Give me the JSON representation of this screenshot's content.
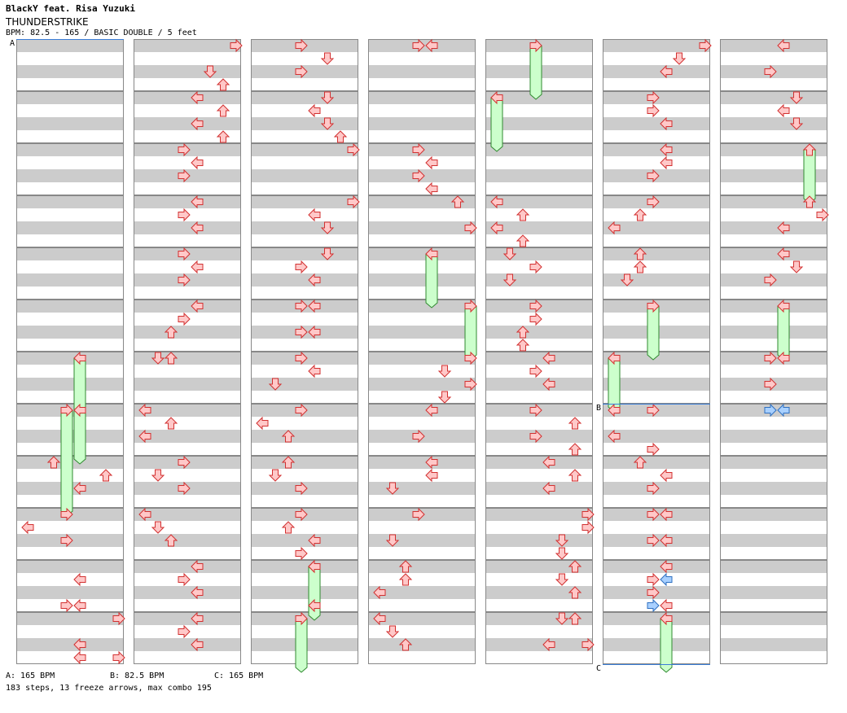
{
  "header": {
    "artist": "BlackY feat. Risa Yuzuki",
    "title": "THUNDERSTRIKE",
    "info": "BPM: 82.5 - 165 / BASIC DOUBLE / 5 feet"
  },
  "bpm_markers": [
    {
      "label": "A",
      "column": 0,
      "measure": 0,
      "row": 0
    },
    {
      "label": "B",
      "column": 5,
      "measure": 7,
      "row": 0
    },
    {
      "label": "C",
      "column": 5,
      "measure": 11,
      "row": 4
    }
  ],
  "bpm_legend": [
    "A: 165 BPM",
    "B: 82.5 BPM",
    "C: 165 BPM"
  ],
  "stats": "183 steps, 13 freeze arrows, max combo 195",
  "colors": {
    "stripe": "#cccccc",
    "border": "#888888",
    "arrow_fill": "#ffc8c8",
    "arrow_stroke": "#d23030",
    "freeze_fill": "#ccffcc",
    "freeze_stroke": "#2f8a2f",
    "shock_fill": "#a8d0ff",
    "shock_stroke": "#2e6fc0",
    "bpm_line": "#3a7dd8"
  },
  "chart": {
    "columns": [
      [
        [],
        [],
        [],
        [],
        [],
        [],
        [
          [
            4,
            0,
            "F",
            8
          ]
        ],
        [
          [
            3,
            0,
            "F",
            8
          ],
          [
            4,
            0,
            "N"
          ]
        ],
        [
          [
            3,
            4,
            "N"
          ],
          [
            2,
            0,
            "N"
          ],
          [
            4,
            2,
            "N"
          ],
          [
            6,
            1,
            "N"
          ],
          [
            3,
            6,
            "N"
          ]
        ],
        [
          [
            0,
            1,
            "N"
          ]
        ],
        [
          [
            4,
            3,
            "N"
          ],
          [
            4,
            1,
            "N"
          ],
          [
            3,
            3,
            "N"
          ],
          [
            4,
            6,
            "N"
          ]
        ],
        [
          [
            7,
            0,
            "N"
          ],
          [
            4,
            3,
            "N"
          ],
          [
            7,
            3,
            "N"
          ]
        ]
      ],
      [
        [
          [
            7,
            0,
            "N"
          ],
          [
            5,
            2,
            "N"
          ],
          [
            6,
            3,
            "N"
          ]
        ],
        [
          [
            4,
            0,
            "N"
          ],
          [
            6,
            1,
            "N"
          ],
          [
            4,
            2,
            "N"
          ],
          [
            6,
            3,
            "N"
          ]
        ],
        [
          [
            3,
            0,
            "N"
          ],
          [
            4,
            1,
            "N"
          ],
          [
            3,
            2,
            "N"
          ]
        ],
        [
          [
            4,
            0,
            "N"
          ],
          [
            3,
            1,
            "N"
          ],
          [
            4,
            2,
            "N"
          ]
        ],
        [
          [
            3,
            0,
            "N"
          ],
          [
            4,
            1,
            "N"
          ],
          [
            3,
            2,
            "N"
          ]
        ],
        [
          [
            4,
            0,
            "N"
          ],
          [
            3,
            1,
            "N"
          ],
          [
            2,
            2,
            "N"
          ]
        ],
        [
          [
            1,
            0,
            "N"
          ],
          [
            2,
            0,
            "N"
          ]
        ],
        [
          [
            0,
            0,
            "N"
          ],
          [
            2,
            1,
            "N"
          ],
          [
            0,
            2,
            "N"
          ]
        ],
        [
          [
            3,
            0,
            "N"
          ],
          [
            1,
            1,
            "N"
          ],
          [
            3,
            2,
            "N"
          ]
        ],
        [
          [
            0,
            0,
            "N"
          ],
          [
            1,
            1,
            "N"
          ],
          [
            2,
            2,
            "N"
          ]
        ],
        [
          [
            4,
            0,
            "N"
          ],
          [
            3,
            1,
            "N"
          ],
          [
            4,
            2,
            "N"
          ]
        ],
        [
          [
            4,
            0,
            "N"
          ],
          [
            3,
            1,
            "N"
          ],
          [
            4,
            2,
            "N"
          ]
        ]
      ],
      [
        [
          [
            3,
            0,
            "N"
          ],
          [
            5,
            1,
            "N"
          ],
          [
            3,
            2,
            "N"
          ]
        ],
        [
          [
            5,
            0,
            "N"
          ],
          [
            4,
            1,
            "N"
          ],
          [
            5,
            2,
            "N"
          ],
          [
            6,
            3,
            "N"
          ]
        ],
        [
          [
            7,
            0,
            "N"
          ]
        ],
        [
          [
            7,
            0,
            "N"
          ],
          [
            4,
            1,
            "N"
          ],
          [
            5,
            2,
            "N"
          ]
        ],
        [
          [
            5,
            0,
            "N"
          ],
          [
            3,
            1,
            "N"
          ],
          [
            4,
            2,
            "N"
          ]
        ],
        [
          [
            3,
            0,
            "N"
          ],
          [
            4,
            0,
            "N"
          ],
          [
            3,
            2,
            "N"
          ],
          [
            4,
            2,
            "N"
          ]
        ],
        [
          [
            3,
            0,
            "N"
          ],
          [
            4,
            1,
            "N"
          ],
          [
            1,
            2,
            "N"
          ]
        ],
        [
          [
            3,
            0,
            "N"
          ],
          [
            0,
            1,
            "N"
          ],
          [
            2,
            2,
            "N"
          ]
        ],
        [
          [
            2,
            0,
            "N"
          ],
          [
            1,
            1,
            "N"
          ],
          [
            3,
            2,
            "N"
          ]
        ],
        [
          [
            3,
            0,
            "N"
          ],
          [
            2,
            1,
            "N"
          ],
          [
            4,
            2,
            "N"
          ],
          [
            3,
            3,
            "N"
          ]
        ],
        [
          [
            4,
            0,
            "F",
            4
          ],
          [
            4,
            0,
            "N"
          ],
          [
            4,
            3,
            "N"
          ]
        ],
        [
          [
            3,
            0,
            "F",
            4
          ]
        ]
      ],
      [
        [
          [
            3,
            0,
            "N"
          ],
          [
            4,
            0,
            "N"
          ]
        ],
        [],
        [
          [
            3,
            0,
            "N"
          ],
          [
            4,
            1,
            "N"
          ],
          [
            3,
            2,
            "N"
          ],
          [
            4,
            3,
            "N"
          ]
        ],
        [
          [
            6,
            0,
            "N"
          ],
          [
            7,
            2,
            "N"
          ]
        ],
        [
          [
            4,
            0,
            "F",
            4
          ]
        ],
        [
          [
            7,
            0,
            "F",
            4
          ]
        ],
        [
          [
            7,
            0,
            "N"
          ],
          [
            5,
            1,
            "N"
          ],
          [
            7,
            2,
            "N"
          ],
          [
            5,
            3,
            "N"
          ]
        ],
        [
          [
            4,
            0,
            "N"
          ],
          [
            3,
            2,
            "N"
          ]
        ],
        [
          [
            4,
            0,
            "N"
          ],
          [
            4,
            1,
            "N"
          ],
          [
            1,
            2,
            "N"
          ]
        ],
        [
          [
            3,
            0,
            "N"
          ],
          [
            1,
            2,
            "N"
          ]
        ],
        [
          [
            2,
            0,
            "N"
          ],
          [
            2,
            1,
            "N"
          ],
          [
            0,
            2,
            "N"
          ]
        ],
        [
          [
            0,
            0,
            "N"
          ],
          [
            1,
            1,
            "N"
          ],
          [
            2,
            2,
            "N"
          ]
        ]
      ],
      [
        [
          [
            3,
            0,
            "F",
            4
          ]
        ],
        [
          [
            0,
            0,
            "F",
            4
          ]
        ],
        [],
        [
          [
            0,
            0,
            "N"
          ],
          [
            2,
            1,
            "N"
          ],
          [
            0,
            2,
            "N"
          ],
          [
            2,
            3,
            "N"
          ]
        ],
        [
          [
            1,
            0,
            "N"
          ],
          [
            3,
            1,
            "N"
          ],
          [
            1,
            2,
            "N"
          ]
        ],
        [
          [
            3,
            0,
            "N"
          ],
          [
            3,
            1,
            "N"
          ],
          [
            2,
            2,
            "N"
          ],
          [
            2,
            3,
            "N"
          ]
        ],
        [
          [
            4,
            0,
            "N"
          ],
          [
            3,
            1,
            "N"
          ],
          [
            4,
            2,
            "N"
          ]
        ],
        [
          [
            3,
            0,
            "N"
          ],
          [
            6,
            1,
            "N"
          ],
          [
            3,
            2,
            "N"
          ],
          [
            6,
            3,
            "N"
          ]
        ],
        [
          [
            4,
            0,
            "N"
          ],
          [
            6,
            1,
            "N"
          ],
          [
            4,
            2,
            "N"
          ]
        ],
        [
          [
            7,
            0,
            "N"
          ],
          [
            7,
            1,
            "N"
          ],
          [
            5,
            2,
            "N"
          ],
          [
            5,
            3,
            "N"
          ]
        ],
        [
          [
            6,
            0,
            "N"
          ],
          [
            5,
            1,
            "N"
          ],
          [
            6,
            2,
            "N"
          ]
        ],
        [
          [
            5,
            0,
            "N"
          ],
          [
            6,
            0,
            "N"
          ],
          [
            4,
            2,
            "N"
          ],
          [
            7,
            2,
            "N"
          ]
        ]
      ],
      [
        [
          [
            7,
            0,
            "N"
          ],
          [
            5,
            1,
            "N"
          ],
          [
            4,
            2,
            "N"
          ]
        ],
        [
          [
            3,
            0,
            "N"
          ],
          [
            3,
            1,
            "N"
          ],
          [
            4,
            2,
            "N"
          ]
        ],
        [
          [
            4,
            0,
            "N"
          ],
          [
            4,
            1,
            "N"
          ],
          [
            3,
            2,
            "N"
          ]
        ],
        [
          [
            3,
            0,
            "N"
          ],
          [
            2,
            1,
            "N"
          ],
          [
            0,
            2,
            "N"
          ]
        ],
        [
          [
            2,
            0,
            "N"
          ],
          [
            2,
            1,
            "N"
          ],
          [
            1,
            2,
            "N"
          ]
        ],
        [
          [
            3,
            0,
            "F",
            4
          ]
        ],
        [
          [
            0,
            0,
            "F",
            4
          ]
        ],
        [
          [
            0,
            0,
            "N"
          ],
          [
            3,
            0,
            "N"
          ],
          [
            0,
            2,
            "N"
          ],
          [
            3,
            3,
            "N"
          ]
        ],
        [
          [
            2,
            0,
            "N"
          ],
          [
            4,
            1,
            "N"
          ],
          [
            3,
            2,
            "N"
          ]
        ],
        [
          [
            3,
            0,
            "N"
          ],
          [
            4,
            0,
            "N"
          ],
          [
            3,
            2,
            "N"
          ],
          [
            4,
            2,
            "N"
          ]
        ],
        [
          [
            4,
            0,
            "N"
          ],
          [
            4,
            1,
            "S"
          ],
          [
            3,
            1,
            "N"
          ],
          [
            3,
            2,
            "N"
          ],
          [
            3,
            3,
            "S"
          ],
          [
            4,
            3,
            "N"
          ]
        ],
        [
          [
            4,
            0,
            "F",
            4
          ]
        ]
      ],
      [
        [
          [
            4,
            0,
            "N"
          ],
          [
            3,
            2,
            "N"
          ]
        ],
        [
          [
            5,
            0,
            "N"
          ],
          [
            4,
            1,
            "N"
          ],
          [
            5,
            2,
            "N"
          ]
        ],
        [
          [
            6,
            0,
            "F",
            4
          ]
        ],
        [
          [
            6,
            0,
            "N"
          ],
          [
            7,
            1,
            "N"
          ],
          [
            4,
            2,
            "N"
          ]
        ],
        [
          [
            4,
            0,
            "N"
          ],
          [
            5,
            1,
            "N"
          ],
          [
            3,
            2,
            "N"
          ]
        ],
        [
          [
            4,
            0,
            "F",
            4
          ]
        ],
        [
          [
            3,
            0,
            "N"
          ],
          [
            4,
            0,
            "N"
          ],
          [
            3,
            2,
            "N"
          ]
        ],
        [
          [
            3,
            0,
            "S"
          ],
          [
            4,
            0,
            "S"
          ]
        ],
        [],
        [],
        [],
        []
      ]
    ]
  }
}
